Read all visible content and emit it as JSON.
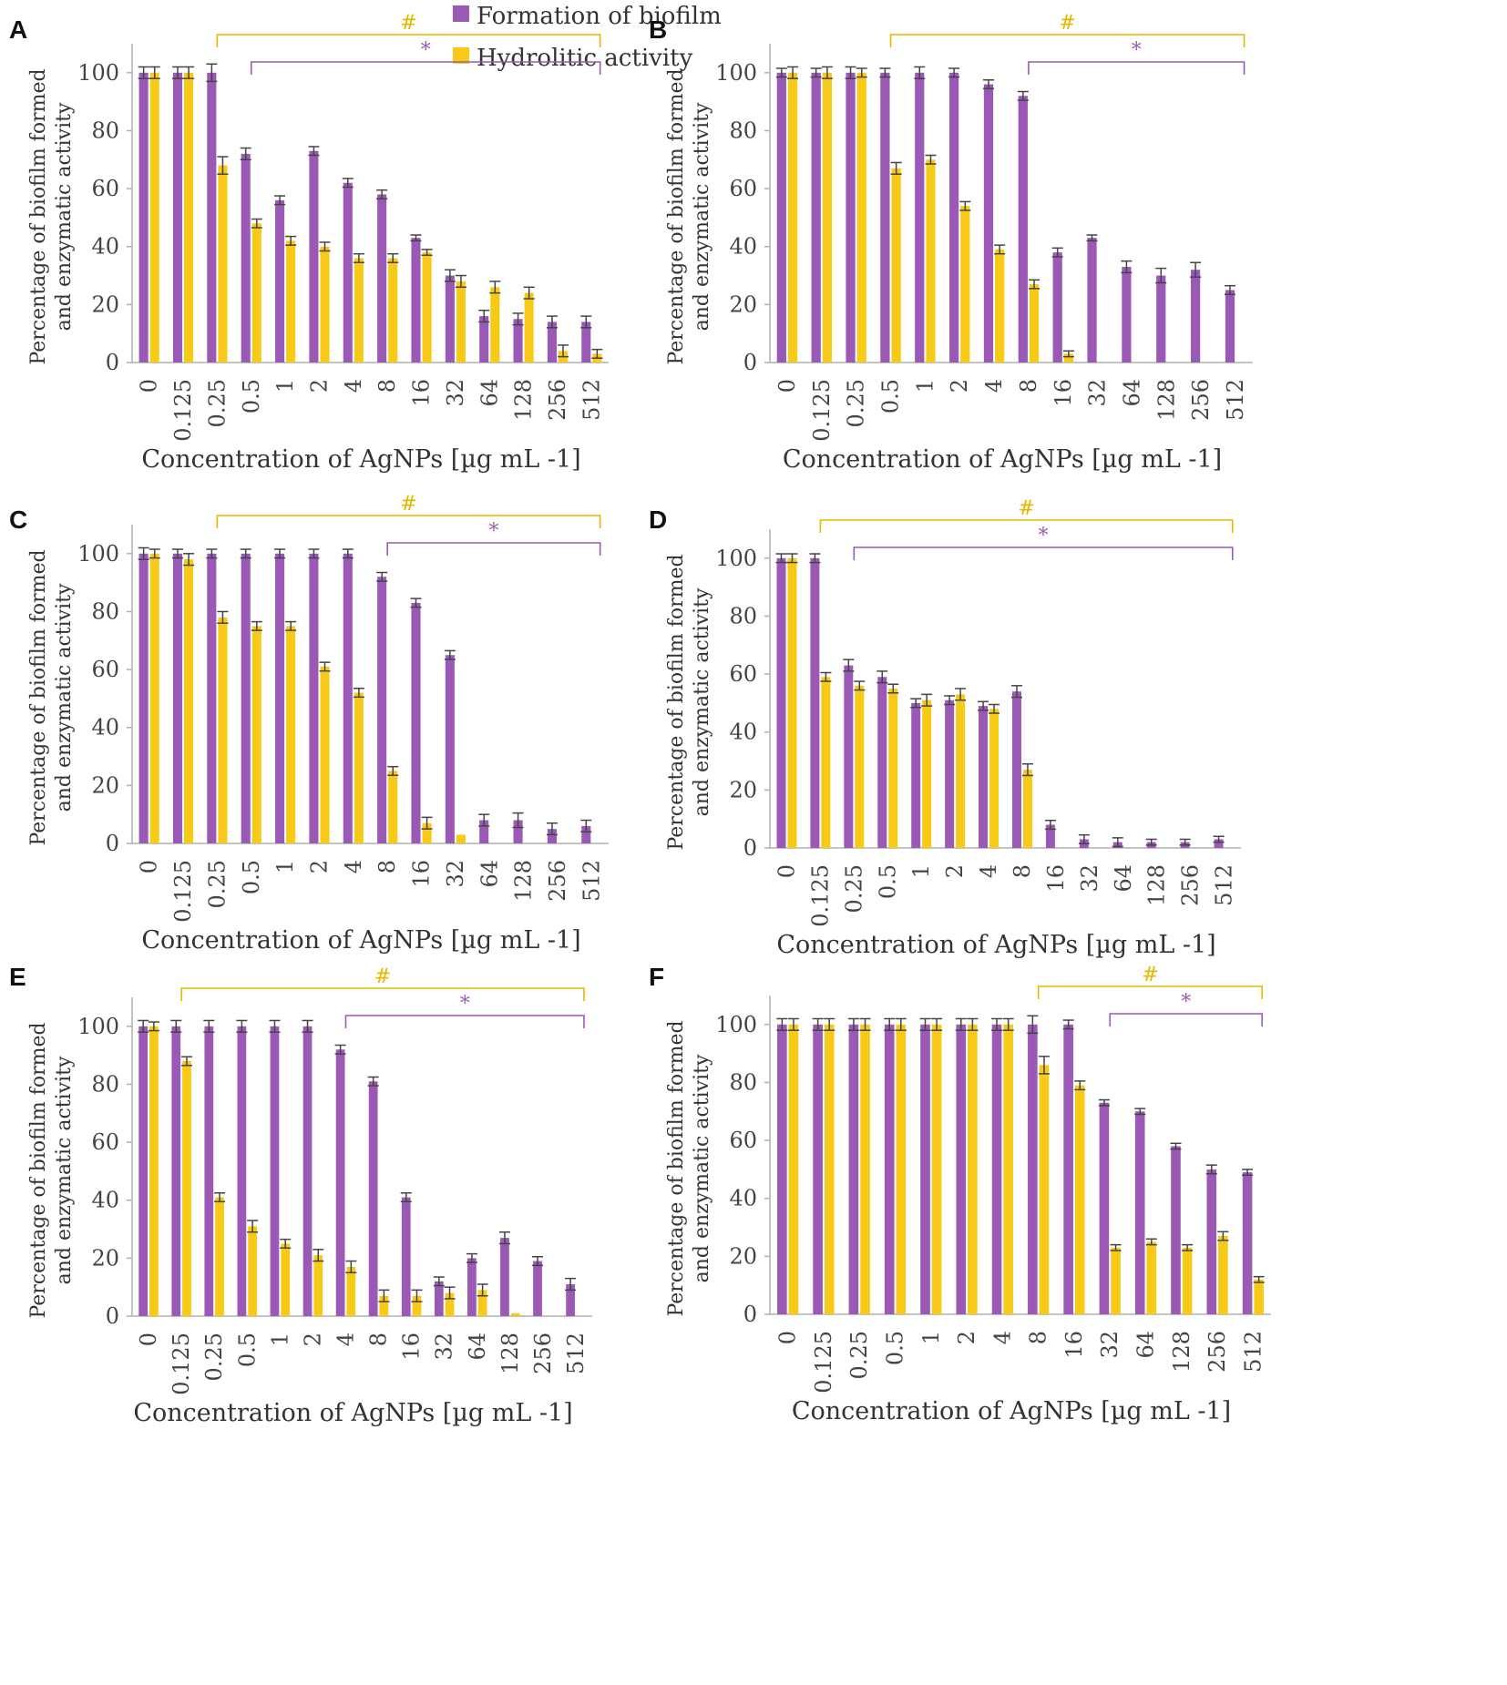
{
  "colors": {
    "biofilm": "#9B59B6",
    "hydrolitic": "#F7CA18",
    "axis": "#b0b0b0",
    "error": "#444444",
    "bracket_hash": "#E6B800",
    "bracket_star": "#9B59B6"
  },
  "legend": {
    "biofilm": "Formation of biofilm",
    "hydrolitic": "Hydrolitic activity"
  },
  "chart_data": [
    {
      "type": "bar",
      "panel": "A",
      "categories": [
        "0",
        "0.125",
        "0.25",
        "0.5",
        "1",
        "2",
        "4",
        "8",
        "16",
        "32",
        "64",
        "128",
        "256",
        "512"
      ],
      "series": [
        {
          "name": "Formation of biofilm",
          "values": [
            100,
            100,
            100,
            72,
            56,
            73,
            62,
            58,
            43,
            30,
            16,
            15,
            14,
            14
          ],
          "errors": [
            2,
            2,
            3,
            2,
            1.5,
            1.5,
            1.5,
            1.5,
            1,
            2,
            2,
            2,
            2,
            2
          ]
        },
        {
          "name": "Hydrolitic activity",
          "values": [
            100,
            100,
            68,
            48,
            42,
            40,
            36,
            36,
            38,
            28,
            26,
            24,
            4,
            3
          ],
          "errors": [
            2,
            2,
            3,
            1.5,
            1.5,
            1.5,
            1.5,
            1.5,
            1,
            2,
            2,
            2,
            2,
            1.5
          ]
        }
      ],
      "xlabel": "Concentration of AgNPs [µg mL -1]",
      "ylabel": [
        "Percentage of biofilm formed",
        "and enzymatic activity"
      ],
      "yticks": [
        "0",
        "20",
        "40",
        "60",
        "80",
        "100"
      ],
      "ylim": [
        0,
        110
      ],
      "brackets": [
        {
          "symbol": "#",
          "series": "hydrolitic",
          "from": "0.25",
          "to": "512"
        },
        {
          "symbol": "*",
          "series": "biofilm",
          "from": "0.5",
          "to": "512"
        }
      ]
    },
    {
      "type": "bar",
      "panel": "B",
      "categories": [
        "0",
        "0.125",
        "0.25",
        "0.5",
        "1",
        "2",
        "4",
        "8",
        "16",
        "32",
        "64",
        "128",
        "256",
        "512"
      ],
      "series": [
        {
          "name": "Formation of biofilm",
          "values": [
            100,
            100,
            100,
            100,
            100,
            100,
            96,
            92,
            38,
            43,
            33,
            30,
            32,
            25
          ],
          "errors": [
            1.5,
            1.5,
            2,
            1.5,
            2,
            1.5,
            1.5,
            1.5,
            1.5,
            1,
            2,
            2.5,
            2.5,
            1.5
          ]
        },
        {
          "name": "Hydrolitic activity",
          "values": [
            100,
            100,
            100,
            67,
            70,
            54,
            39,
            27,
            3,
            0,
            0,
            0,
            0,
            0
          ],
          "errors": [
            2,
            2,
            1.5,
            2,
            1.5,
            1.5,
            1.5,
            1.5,
            1,
            0,
            0,
            0,
            0,
            0
          ]
        }
      ],
      "xlabel": "Concentration of AgNPs [µg mL -1]",
      "ylabel": [
        "Percentage of biofilm formed",
        "and enzymatic activity"
      ],
      "yticks": [
        "0",
        "20",
        "40",
        "60",
        "80",
        "100"
      ],
      "ylim": [
        0,
        110
      ],
      "brackets": [
        {
          "symbol": "#",
          "series": "hydrolitic",
          "from": "0.5",
          "to": "512"
        },
        {
          "symbol": "*",
          "series": "biofilm",
          "from": "8",
          "to": "512"
        }
      ]
    },
    {
      "type": "bar",
      "panel": "C",
      "categories": [
        "0",
        "0.125",
        "0.25",
        "0.5",
        "1",
        "2",
        "4",
        "8",
        "16",
        "32",
        "64",
        "128",
        "256",
        "512"
      ],
      "series": [
        {
          "name": "Formation of biofilm",
          "values": [
            100,
            100,
            100,
            100,
            100,
            100,
            100,
            92,
            83,
            65,
            8,
            8,
            5,
            6
          ],
          "errors": [
            2,
            1.5,
            1.5,
            1.5,
            1.5,
            1.5,
            1.5,
            1.5,
            1.5,
            1.5,
            2,
            2.5,
            2,
            2
          ]
        },
        {
          "name": "Hydrolitic activity",
          "values": [
            100,
            98,
            78,
            75,
            75,
            61,
            52,
            25,
            7,
            3,
            0,
            0,
            0,
            0
          ],
          "errors": [
            1.5,
            2,
            2,
            1.5,
            1.5,
            1.5,
            1.5,
            1.5,
            2,
            0,
            0,
            0,
            0,
            0
          ]
        }
      ],
      "xlabel": "Concentration of AgNPs [µg mL -1]",
      "ylabel": [
        "Percentage of biofilm formed",
        "and enzymatic activity"
      ],
      "yticks": [
        "0",
        "20",
        "40",
        "60",
        "80",
        "100"
      ],
      "ylim": [
        0,
        110
      ],
      "brackets": [
        {
          "symbol": "#",
          "series": "hydrolitic",
          "from": "0.25",
          "to": "512"
        },
        {
          "symbol": "*",
          "series": "biofilm",
          "from": "8",
          "to": "512"
        }
      ]
    },
    {
      "type": "bar",
      "panel": "D",
      "categories": [
        "0",
        "0.125",
        "0.25",
        "0.5",
        "1",
        "2",
        "4",
        "8",
        "16",
        "32",
        "64",
        "128",
        "256",
        "512"
      ],
      "series": [
        {
          "name": "Formation of biofilm",
          "values": [
            100,
            100,
            63,
            59,
            50,
            51,
            49,
            54,
            8,
            3,
            2,
            2,
            2,
            3
          ],
          "errors": [
            1.5,
            1.5,
            2,
            2,
            1.5,
            1.5,
            1.5,
            2,
            1.5,
            1.5,
            1.5,
            1,
            1,
            1
          ]
        },
        {
          "name": "Hydrolitic activity",
          "values": [
            100,
            59,
            56,
            55,
            51,
            53,
            48,
            27,
            0,
            0,
            0,
            0,
            0,
            0
          ],
          "errors": [
            1.5,
            1.5,
            1.5,
            1.5,
            2,
            2,
            1.5,
            2,
            0,
            0,
            0,
            0,
            0,
            0
          ]
        }
      ],
      "xlabel": "Concentration of AgNPs [µg mL -1]",
      "ylabel": [
        "Percentage of biofilm formed",
        "and enzymatic activity"
      ],
      "yticks": [
        "0",
        "20",
        "40",
        "60",
        "80",
        "100"
      ],
      "ylim": [
        0,
        110
      ],
      "brackets": [
        {
          "symbol": "#",
          "series": "hydrolitic",
          "from": "0.125",
          "to": "512"
        },
        {
          "symbol": "*",
          "series": "biofilm",
          "from": "0.25",
          "to": "512"
        }
      ]
    },
    {
      "type": "bar",
      "panel": "E",
      "categories": [
        "0",
        "0.125",
        "0.25",
        "0.5",
        "1",
        "2",
        "4",
        "8",
        "16",
        "32",
        "64",
        "128",
        "256",
        "512"
      ],
      "series": [
        {
          "name": "Formation of biofilm",
          "values": [
            100,
            100,
            100,
            100,
            100,
            100,
            92,
            81,
            41,
            12,
            20,
            27,
            19,
            11
          ],
          "errors": [
            2,
            2,
            2,
            2,
            2,
            2,
            1.5,
            1.5,
            1.5,
            1.5,
            1.5,
            2,
            1.5,
            2
          ]
        },
        {
          "name": "Hydrolitic activity",
          "values": [
            100,
            88,
            41,
            31,
            25,
            21,
            17,
            7,
            7,
            8,
            9,
            1,
            0,
            0
          ],
          "errors": [
            1.5,
            1.5,
            1.5,
            2,
            1.5,
            2,
            2,
            2,
            2,
            2,
            2,
            0,
            0,
            0
          ]
        }
      ],
      "xlabel": "Concentration of AgNPs [µg mL -1]",
      "ylabel": [
        "Percentage of biofilm formed",
        "and enzymatic activity"
      ],
      "yticks": [
        "0",
        "20",
        "40",
        "60",
        "80",
        "100"
      ],
      "ylim": [
        0,
        110
      ],
      "brackets": [
        {
          "symbol": "#",
          "series": "hydrolitic",
          "from": "0.125",
          "to": "512"
        },
        {
          "symbol": "*",
          "series": "biofilm",
          "from": "4",
          "to": "512"
        }
      ]
    },
    {
      "type": "bar",
      "panel": "F",
      "categories": [
        "0",
        "0.125",
        "0.25",
        "0.5",
        "1",
        "2",
        "4",
        "8",
        "16",
        "32",
        "64",
        "128",
        "256",
        "512"
      ],
      "series": [
        {
          "name": "Formation of biofilm",
          "values": [
            100,
            100,
            100,
            100,
            100,
            100,
            100,
            100,
            100,
            73,
            70,
            58,
            50,
            49
          ],
          "errors": [
            2,
            2,
            2,
            2,
            2,
            2,
            2,
            3,
            1.5,
            1,
            1,
            1,
            1.5,
            1
          ]
        },
        {
          "name": "Hydrolitic activity",
          "values": [
            100,
            100,
            100,
            100,
            100,
            100,
            100,
            86,
            79,
            23,
            25,
            23,
            27,
            12
          ],
          "errors": [
            2,
            2,
            2,
            2,
            2,
            2,
            2,
            3,
            1.5,
            1,
            1,
            1,
            1.5,
            1
          ]
        }
      ],
      "xlabel": "Concentration of AgNPs [µg mL -1]",
      "ylabel": [
        "Percentage of biofilm formed",
        "and enzymatic activity"
      ],
      "yticks": [
        "0",
        "20",
        "40",
        "60",
        "80",
        "100"
      ],
      "ylim": [
        0,
        110
      ],
      "brackets": [
        {
          "symbol": "#",
          "series": "hydrolitic",
          "from": "8",
          "to": "512"
        },
        {
          "symbol": "*",
          "series": "biofilm",
          "from": "32",
          "to": "512"
        }
      ]
    }
  ]
}
